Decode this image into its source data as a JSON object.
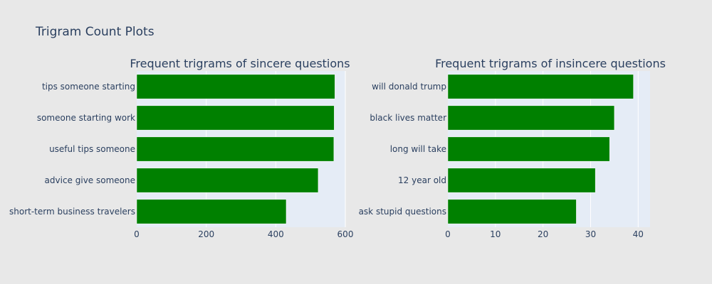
{
  "figure": {
    "title": "Trigram Count Plots"
  },
  "colors": {
    "background": "#e8e8e8",
    "plot_background": "#e5ecf6",
    "bar": "#008000",
    "text": "#2a3f5f",
    "grid": "#ffffff"
  },
  "chart_data": [
    {
      "type": "bar",
      "orientation": "horizontal",
      "title": "Frequent trigrams of sincere questions",
      "categories": [
        "tips someone starting",
        "someone starting work",
        "useful tips someone",
        "advice give someone",
        "short-term business travelers"
      ],
      "values": [
        570,
        568,
        567,
        522,
        430
      ],
      "xlim": [
        0,
        600
      ],
      "xticks": [
        0,
        200,
        400,
        600
      ],
      "grid": true,
      "legend": "none"
    },
    {
      "type": "bar",
      "orientation": "horizontal",
      "title": "Frequent trigrams of insincere questions",
      "categories": [
        "will donald trump",
        "black lives matter",
        "long will take",
        "12 year old",
        "ask stupid questions"
      ],
      "values": [
        39,
        35,
        34,
        31,
        27
      ],
      "xlim": [
        0,
        42.5
      ],
      "xticks": [
        0,
        10,
        20,
        30,
        40
      ],
      "grid": true,
      "legend": "none"
    }
  ]
}
